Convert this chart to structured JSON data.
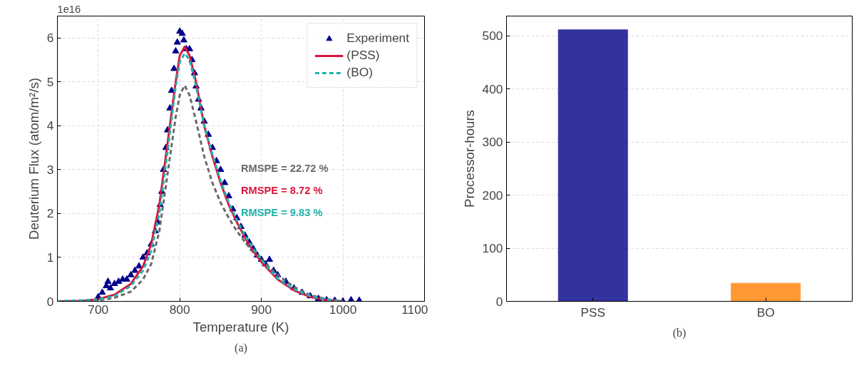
{
  "chart_data": [
    {
      "type": "line",
      "xlabel": "Temperature (K)",
      "ylabel": "Deuterium Flux (atom/m²/s)",
      "xlim": [
        650,
        1100
      ],
      "ylim": [
        0,
        6.5
      ],
      "xticks": [
        700,
        800,
        900,
        1000,
        1100
      ],
      "yticks": [
        0,
        1,
        2,
        3,
        4,
        5,
        6
      ],
      "grid": true,
      "legend": "top right",
      "series": [
        {
          "name": "Experiment",
          "type": "scatter",
          "marker": "triangle",
          "color": "#00008b",
          "x": [
            700,
            705,
            710,
            712,
            715,
            720,
            725,
            730,
            735,
            740,
            745,
            750,
            755,
            760,
            765,
            770,
            773,
            776,
            778,
            780,
            783,
            785,
            788,
            790,
            793,
            795,
            797,
            800,
            803,
            805,
            808,
            812,
            815,
            818,
            820,
            823,
            826,
            830,
            835,
            840,
            845,
            850,
            855,
            860,
            865,
            870,
            875,
            880,
            885,
            890,
            895,
            900,
            905,
            910,
            915,
            920,
            930,
            940,
            950,
            960,
            970,
            980,
            990,
            1000,
            1010,
            1020
          ],
          "values": [
            0.1,
            0.2,
            0.35,
            0.45,
            0.3,
            0.4,
            0.45,
            0.5,
            0.5,
            0.6,
            0.7,
            0.8,
            1.0,
            1.1,
            1.3,
            1.6,
            1.8,
            2.2,
            2.5,
            3.0,
            3.5,
            3.9,
            4.4,
            4.8,
            5.3,
            5.7,
            5.9,
            6.15,
            6.1,
            5.95,
            5.75,
            5.75,
            5.5,
            5.2,
            4.9,
            4.6,
            4.4,
            4.1,
            3.8,
            3.5,
            3.2,
            3.0,
            2.7,
            2.4,
            2.1,
            1.9,
            1.7,
            1.5,
            1.35,
            1.2,
            1.05,
            0.95,
            0.85,
            0.95,
            0.7,
            0.6,
            0.45,
            0.3,
            0.2,
            0.12,
            0.06,
            0.03,
            0.02,
            0.0,
            0.03,
            0.02
          ]
        },
        {
          "type": "line",
          "line_style": "dashed",
          "color": "#696969",
          "x": [
            650,
            700,
            720,
            740,
            755,
            765,
            775,
            785,
            795,
            800,
            806,
            812,
            820,
            830,
            840,
            850,
            860,
            870,
            880,
            890,
            900,
            920,
            940,
            960,
            980,
            1000
          ],
          "values": [
            0,
            0.02,
            0.08,
            0.22,
            0.5,
            0.85,
            1.6,
            2.9,
            4.2,
            4.7,
            4.92,
            4.7,
            4.1,
            3.3,
            2.7,
            2.25,
            1.9,
            1.6,
            1.35,
            1.12,
            0.95,
            0.6,
            0.33,
            0.14,
            0.05,
            0.0
          ]
        },
        {
          "name": "(PSS)",
          "type": "line",
          "line_style": "solid",
          "color": "#dc143c",
          "x": [
            650,
            680,
            700,
            720,
            740,
            755,
            765,
            775,
            785,
            795,
            800,
            806,
            812,
            820,
            830,
            840,
            850,
            860,
            870,
            880,
            890,
            900,
            920,
            940,
            960,
            980,
            1000
          ],
          "values": [
            0,
            0.01,
            0.05,
            0.15,
            0.4,
            0.8,
            1.3,
            2.2,
            3.6,
            5.0,
            5.6,
            5.8,
            5.6,
            5.0,
            4.0,
            3.3,
            2.7,
            2.2,
            1.8,
            1.45,
            1.15,
            0.9,
            0.5,
            0.25,
            0.1,
            0.03,
            0.0
          ]
        },
        {
          "name": "(BO)",
          "type": "line",
          "line_style": "dashed",
          "color": "#20b2aa",
          "x": [
            650,
            700,
            720,
            740,
            755,
            765,
            775,
            785,
            795,
            800,
            806,
            812,
            820,
            830,
            840,
            850,
            860,
            870,
            880,
            890,
            900,
            920,
            940,
            960,
            980,
            1000
          ],
          "values": [
            0,
            0.04,
            0.12,
            0.35,
            0.7,
            1.15,
            2.0,
            3.4,
            4.9,
            5.45,
            5.65,
            5.5,
            4.9,
            4.0,
            3.35,
            2.75,
            2.25,
            1.85,
            1.5,
            1.2,
            0.95,
            0.52,
            0.28,
            0.12,
            0.04,
            0.0
          ]
        }
      ],
      "annotations": [
        "RMSPE = 22.72 %",
        "RMSPE = 8.72 %",
        "RMSPE = 9.83 %",
        "1e16",
        "(a)"
      ]
    },
    {
      "type": "bar",
      "ylabel": "Processor-hours",
      "categories": [
        "PSS",
        "BO"
      ],
      "values": [
        511,
        34
      ],
      "colors": [
        "#3333a0",
        "#ff9933"
      ],
      "ylim": [
        0,
        537
      ],
      "yticks": [
        0,
        100,
        200,
        300,
        400,
        500
      ],
      "grid": "y",
      "annotations": [
        "(b)"
      ]
    }
  ]
}
